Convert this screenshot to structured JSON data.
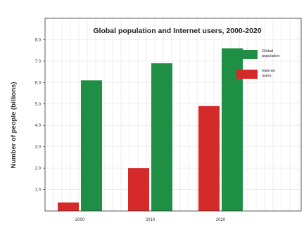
{
  "chart_data": {
    "type": "bar",
    "title": "Global population and Internet users, 2000-2020",
    "xlabel": "",
    "ylabel": "Number of people (billions)",
    "categories": [
      "2000",
      "2010",
      "2020"
    ],
    "series": [
      {
        "name": "Internet users",
        "color": "#d42a2a",
        "values": [
          0.4,
          2.0,
          4.9
        ]
      },
      {
        "name": "Global population",
        "color": "#1e8f45",
        "values": [
          6.1,
          6.9,
          7.6
        ]
      }
    ],
    "legend_order": [
      1,
      0
    ],
    "yticks": [
      "1.0",
      "2.0",
      "3.0",
      "4.0",
      "5.0",
      "6.0",
      "7.0",
      "8.0"
    ],
    "ylim": [
      0,
      9
    ],
    "grid": true,
    "legend_position": "top-right",
    "colors": {
      "grid": "#e3e3e3",
      "frame": "#333333"
    }
  }
}
